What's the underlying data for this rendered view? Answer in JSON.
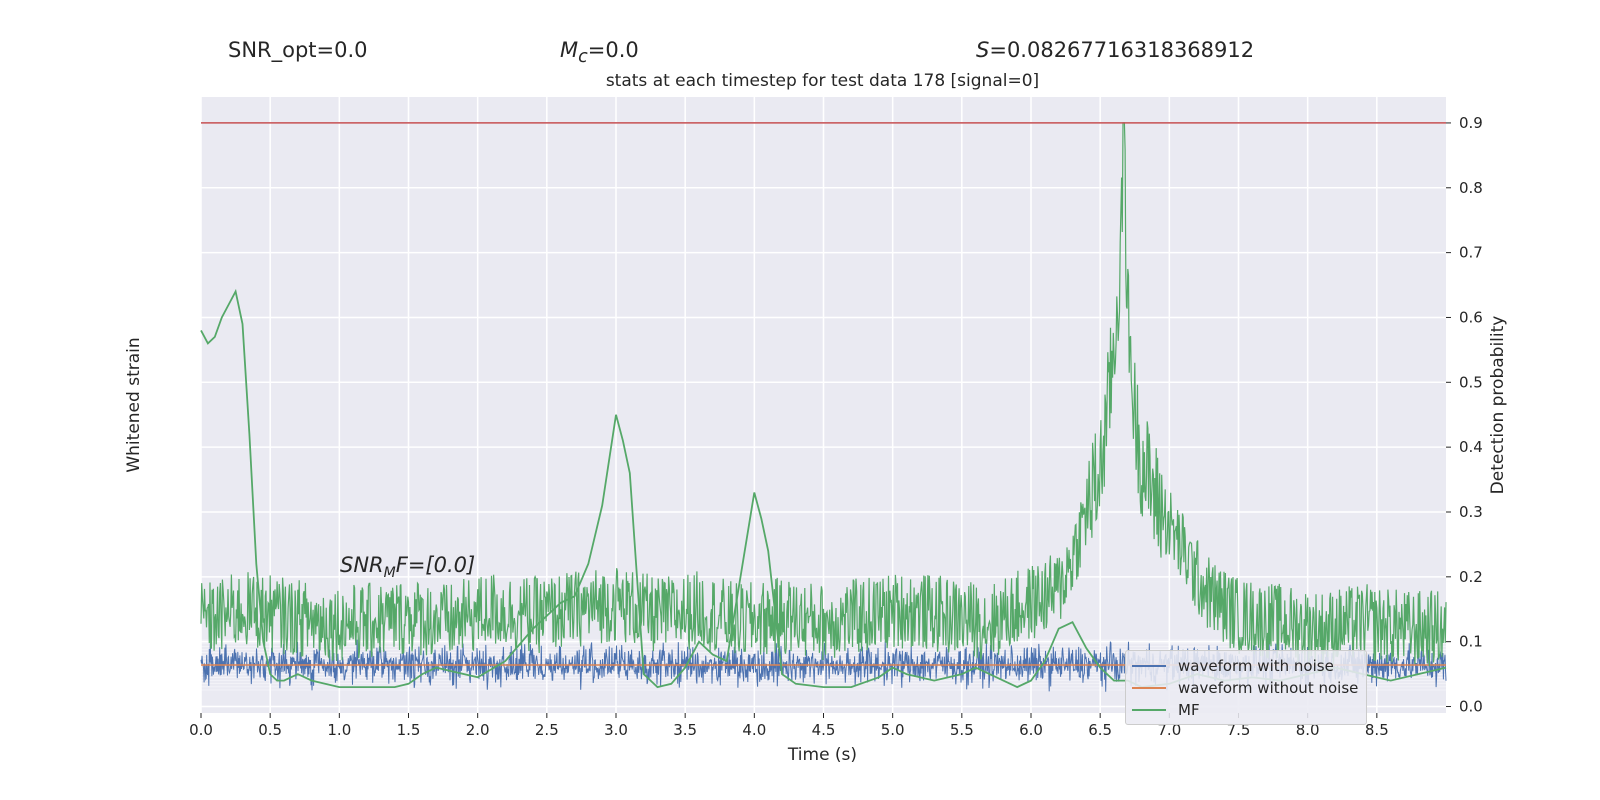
{
  "header": {
    "snr_opt": "SNR_opt=0.0",
    "mc_label": "M",
    "mc_sub": "c",
    "mc_value": "=0.0",
    "s_label": "S",
    "s_value": "=0.08267716318368912"
  },
  "annotation": {
    "snr_mf_label": "SNR",
    "snr_mf_sub": "M",
    "snr_mf_rest": "F=[0.0]"
  },
  "chart_data": {
    "type": "line",
    "title": "stats at each timestep for test data 178 [signal=0]",
    "xlabel": "Time (s)",
    "ylabel_left": "Whitened strain",
    "ylabel_right": "Detection probability",
    "xlim": [
      0.0,
      9.0
    ],
    "ylim_right": [
      -0.01,
      0.94
    ],
    "x_ticks": [
      "0.0",
      "0.5",
      "1.0",
      "1.5",
      "2.0",
      "2.5",
      "3.0",
      "3.5",
      "4.0",
      "4.5",
      "5.0",
      "5.5",
      "6.0",
      "6.5",
      "7.0",
      "7.5",
      "8.0",
      "8.5"
    ],
    "y_right_ticks": [
      "0.0",
      "0.1",
      "0.2",
      "0.3",
      "0.4",
      "0.5",
      "0.6",
      "0.7",
      "0.8",
      "0.9"
    ],
    "threshold": 0.9,
    "grid": true,
    "legend_position": "lower-right",
    "colors": {
      "noise": "#4c72b0",
      "clean": "#dd8452",
      "mf": "#55a868",
      "threshold": "#c44e52",
      "prob": "#55a868",
      "axes_bg": "#eaeaf2"
    },
    "series": [
      {
        "name": "waveform with noise",
        "noise_band": [
          -1.0,
          1.0
        ]
      },
      {
        "name": "waveform without noise",
        "value": 0.0
      },
      {
        "name": "MF",
        "x": [
          0.0,
          0.05,
          0.1,
          0.15,
          0.2,
          0.25,
          0.3,
          0.35,
          0.4,
          0.45,
          0.5,
          0.55,
          0.6,
          0.7,
          0.8,
          1.0,
          1.2,
          1.4,
          1.5,
          1.6,
          1.7,
          1.8,
          2.0,
          2.2,
          2.4,
          2.6,
          2.7,
          2.8,
          2.9,
          3.0,
          3.05,
          3.1,
          3.2,
          3.3,
          3.4,
          3.5,
          3.6,
          3.7,
          3.8,
          3.9,
          4.0,
          4.05,
          4.1,
          4.2,
          4.3,
          4.5,
          4.7,
          4.9,
          5.0,
          5.1,
          5.3,
          5.5,
          5.6,
          5.7,
          5.8,
          5.9,
          6.0,
          6.1,
          6.2,
          6.3,
          6.4,
          6.5,
          6.6,
          6.7,
          6.8,
          7.0,
          7.2,
          7.4,
          7.6,
          7.8,
          8.0,
          8.2,
          8.4,
          8.6,
          8.8,
          9.0
        ],
        "y": [
          0.58,
          0.56,
          0.57,
          0.6,
          0.62,
          0.64,
          0.59,
          0.42,
          0.22,
          0.1,
          0.05,
          0.04,
          0.04,
          0.05,
          0.04,
          0.03,
          0.03,
          0.03,
          0.035,
          0.05,
          0.06,
          0.055,
          0.045,
          0.07,
          0.12,
          0.16,
          0.17,
          0.22,
          0.31,
          0.45,
          0.41,
          0.36,
          0.05,
          0.03,
          0.035,
          0.06,
          0.1,
          0.08,
          0.07,
          0.2,
          0.33,
          0.29,
          0.24,
          0.05,
          0.035,
          0.03,
          0.03,
          0.045,
          0.06,
          0.05,
          0.04,
          0.05,
          0.06,
          0.05,
          0.04,
          0.03,
          0.04,
          0.07,
          0.12,
          0.13,
          0.09,
          0.06,
          0.04,
          0.04,
          0.03,
          0.035,
          0.05,
          0.04,
          0.045,
          0.04,
          0.05,
          0.06,
          0.05,
          0.04,
          0.05,
          0.06
        ]
      },
      {
        "name": "Detection probability",
        "x": [
          0.0,
          0.3,
          0.6,
          0.9,
          1.2,
          1.5,
          1.8,
          2.1,
          2.4,
          2.7,
          3.0,
          3.3,
          3.6,
          3.9,
          4.2,
          4.5,
          4.8,
          5.1,
          5.4,
          5.7,
          6.0,
          6.2,
          6.3,
          6.4,
          6.5,
          6.55,
          6.6,
          6.65,
          6.67,
          6.7,
          6.75,
          6.8,
          6.9,
          7.0,
          7.1,
          7.2,
          7.3,
          7.5,
          7.8,
          8.1,
          8.4,
          8.7,
          9.0
        ],
        "y": [
          0.13,
          0.15,
          0.14,
          0.13,
          0.13,
          0.14,
          0.13,
          0.15,
          0.14,
          0.15,
          0.16,
          0.14,
          0.15,
          0.13,
          0.14,
          0.13,
          0.14,
          0.15,
          0.14,
          0.13,
          0.16,
          0.18,
          0.23,
          0.3,
          0.36,
          0.45,
          0.55,
          0.7,
          0.9,
          0.6,
          0.45,
          0.38,
          0.32,
          0.28,
          0.24,
          0.2,
          0.17,
          0.14,
          0.13,
          0.12,
          0.13,
          0.12,
          0.12
        ]
      }
    ]
  }
}
